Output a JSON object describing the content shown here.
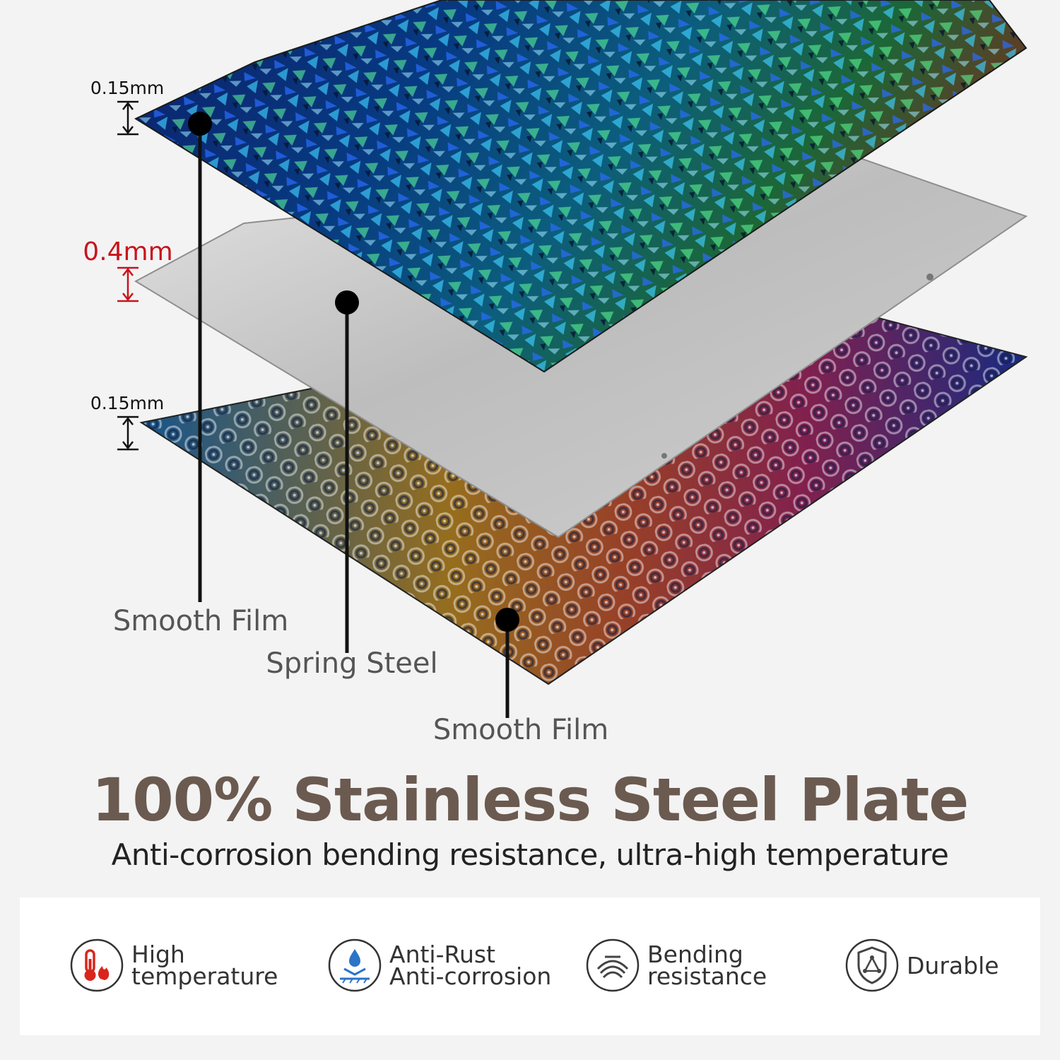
{
  "layers": {
    "top_film_label": "Smooth Film",
    "steel_label": "Spring Steel",
    "bottom_film_label": "Smooth Film",
    "top_thickness": "0.15mm",
    "steel_thickness": "0.4mm",
    "bottom_thickness": "0.15mm"
  },
  "headline": {
    "title": "100% Stainless Steel Plate",
    "subtitle": "Anti-corrosion bending resistance, ultra-high temperature"
  },
  "features": [
    {
      "icon": "thermometer-flame-icon",
      "line1": "High",
      "line2": "temperature"
    },
    {
      "icon": "water-drop-shield-icon",
      "line1": "Anti-Rust",
      "line2": "Anti-corrosion"
    },
    {
      "icon": "bending-arc-icon",
      "line1": "Bending",
      "line2": "resistance"
    },
    {
      "icon": "shield-triangle-icon",
      "line1": "Durable",
      "line2": ""
    }
  ],
  "colors": {
    "title": "#6b5a50",
    "steel_thickness": "#c8141c",
    "accent_red": "#d9261c"
  }
}
